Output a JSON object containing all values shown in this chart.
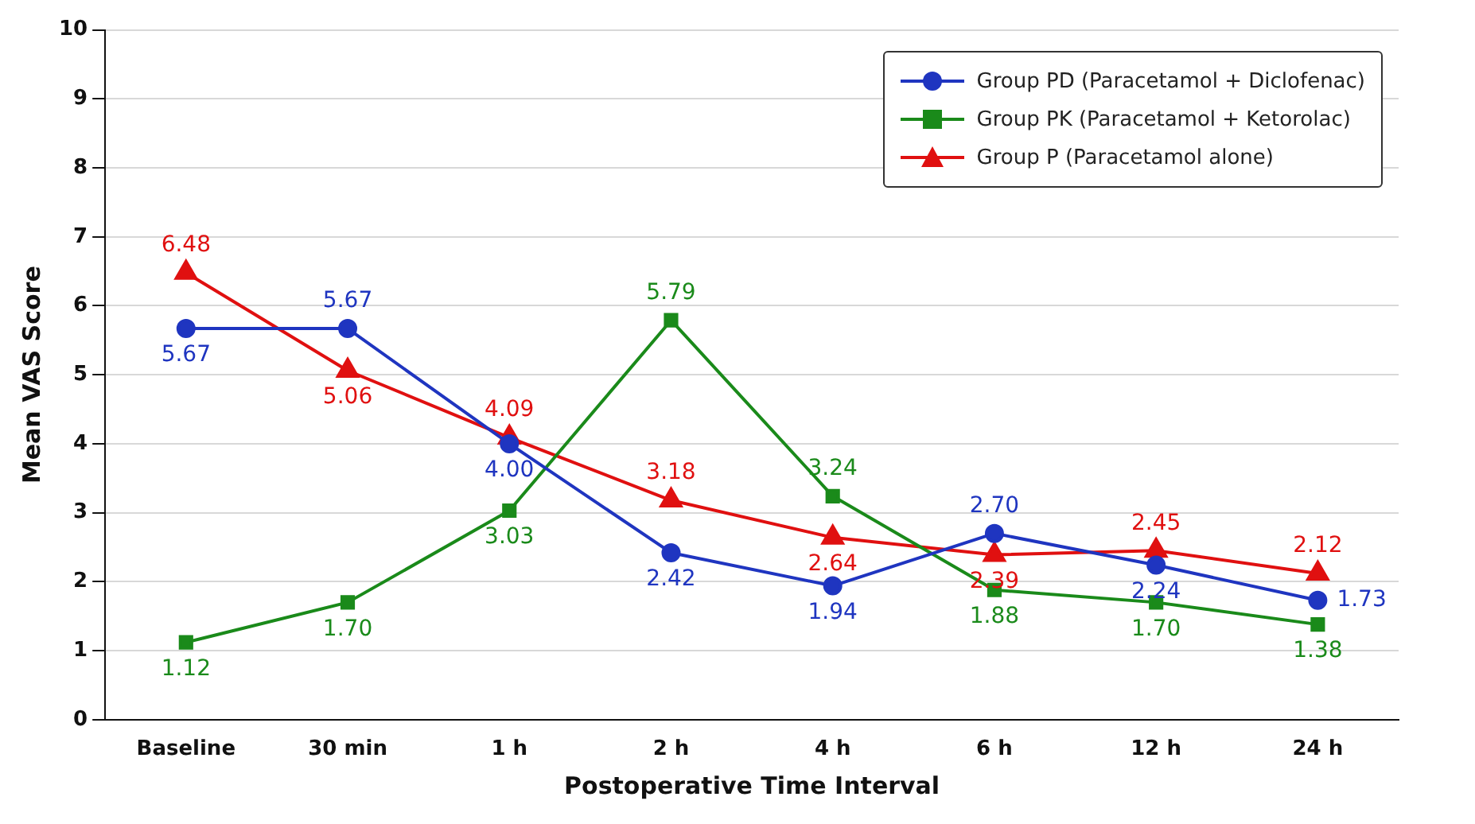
{
  "chart_data": {
    "type": "line",
    "xlabel": "Postoperative Time Interval",
    "ylabel": "Mean VAS Score",
    "categories": [
      "Baseline",
      "30 min",
      "1 h",
      "2 h",
      "4 h",
      "6 h",
      "12 h",
      "24 h"
    ],
    "series": [
      {
        "name": "Group PD (Paracetamol + Diclofenac)",
        "color": "#1f35c0",
        "marker": "circle",
        "values": [
          5.67,
          5.67,
          4.0,
          2.42,
          1.94,
          2.7,
          2.24,
          1.73
        ],
        "value_labels": [
          "5.67",
          "5.67",
          "4.00",
          "2.42",
          "1.94",
          "2.70",
          "2.24",
          "1.73"
        ]
      },
      {
        "name": "Group PK (Paracetamol + Ketorolac)",
        "color": "#1a8a1a",
        "marker": "square",
        "values": [
          1.12,
          1.7,
          3.03,
          5.79,
          3.24,
          1.88,
          1.7,
          1.38
        ],
        "value_labels": [
          "1.12",
          "1.70",
          "3.03",
          "5.79",
          "3.24",
          "1.88",
          "1.70",
          "1.38"
        ]
      },
      {
        "name": "Group P (Paracetamol alone)",
        "color": "#e01010",
        "marker": "triangle",
        "values": [
          6.48,
          5.06,
          4.09,
          3.18,
          2.64,
          2.39,
          2.45,
          2.12
        ],
        "value_labels": [
          "6.48",
          "5.06",
          "4.09",
          "3.18",
          "2.64",
          "2.39",
          "2.45",
          "2.12"
        ]
      }
    ],
    "ylim": [
      0,
      10
    ],
    "yticks": [
      0,
      1,
      2,
      3,
      4,
      5,
      6,
      7,
      8,
      9,
      10
    ],
    "grid": "y",
    "legend": "top right",
    "line_style": "solid"
  }
}
